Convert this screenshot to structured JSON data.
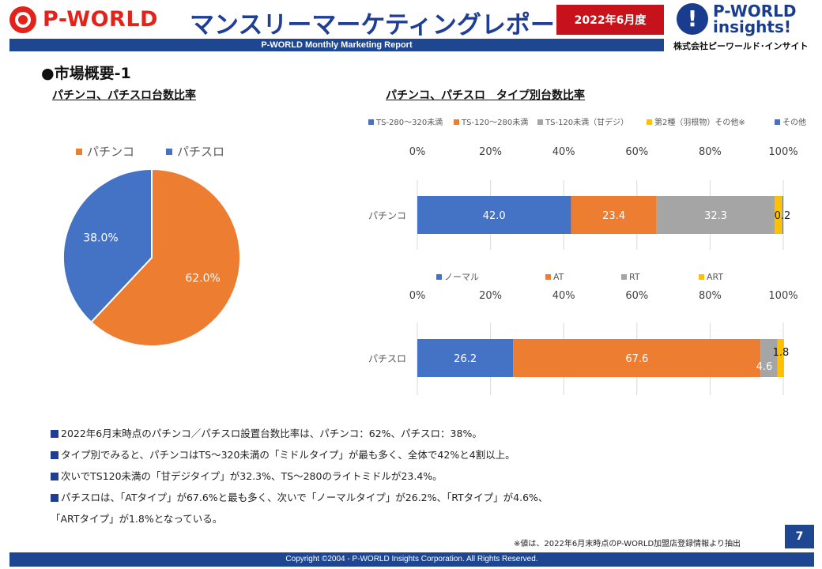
{
  "header": {
    "brand_left": "P-WORLD",
    "title": "マンスリーマーケティングレポート",
    "date_badge": "2022年6月度",
    "subtitle": "P-WORLD Monthly Marketing Report",
    "brand_right_line1": "P-WORLD",
    "brand_right_line2": "insights!",
    "brand_right_company": "株式会社ピーワールド･インサイト",
    "brand_right_mark": "!"
  },
  "section_heading": "●市場概要-1",
  "left_chart_heading": "パチンコ、パチスロ台数比率",
  "right_chart_heading": "パチンコ、パチスロ　タイプ別台数比率",
  "colors": {
    "blue": "#4472c4",
    "orange": "#ed7d31",
    "gray": "#a5a5a5",
    "yellow": "#ffc000",
    "navy": "#1f4690",
    "red": "#c8121b"
  },
  "chart_data": [
    {
      "type": "pie",
      "title": "",
      "legend_position": "top",
      "labels": [
        "パチンコ",
        "パチスロ"
      ],
      "values": [
        62.0,
        38.0
      ],
      "data_labels": [
        "62.0%",
        "38.0%"
      ],
      "colors": [
        "#ed7d31",
        "#4472c4"
      ]
    },
    {
      "type": "bar",
      "orientation": "horizontal",
      "stacked": "100%",
      "title": "",
      "legend_position": "top",
      "categories": [
        "パチンコ"
      ],
      "x_ticks": [
        "0%",
        "20%",
        "40%",
        "60%",
        "80%",
        "100%"
      ],
      "xlim": [
        0,
        100
      ],
      "grid": true,
      "series": [
        {
          "name": "TS-280～320未満",
          "values": [
            42.0
          ],
          "label": "42.0",
          "color": "#4472c4"
        },
        {
          "name": "TS-120～280未満",
          "values": [
            23.4
          ],
          "label": "23.4",
          "color": "#ed7d31"
        },
        {
          "name": "TS-120未満（甘デジ）",
          "values": [
            32.3
          ],
          "label": "32.3",
          "color": "#a5a5a5"
        },
        {
          "name": "第2種（羽根物）その他※",
          "values": [
            2.1
          ],
          "label": "",
          "color": "#ffc000"
        },
        {
          "name": "その他",
          "values": [
            0.2
          ],
          "label": "0.2",
          "color": "#4472c4"
        }
      ]
    },
    {
      "type": "bar",
      "orientation": "horizontal",
      "stacked": "100%",
      "title": "",
      "legend_position": "top",
      "categories": [
        "パチスロ"
      ],
      "x_ticks": [
        "0%",
        "20%",
        "40%",
        "60%",
        "80%",
        "100%"
      ],
      "xlim": [
        0,
        100
      ],
      "grid": true,
      "series": [
        {
          "name": "ノーマル",
          "values": [
            26.2
          ],
          "label": "26.2",
          "color": "#4472c4"
        },
        {
          "name": "AT",
          "values": [
            67.6
          ],
          "label": "67.6",
          "color": "#ed7d31"
        },
        {
          "name": "RT",
          "values": [
            4.6
          ],
          "label": "4.6",
          "color": "#a5a5a5"
        },
        {
          "name": "ART",
          "values": [
            1.8
          ],
          "label": "1.8",
          "color": "#ffc000"
        }
      ]
    }
  ],
  "bullets": [
    "2022年6月末時点のパチンコ／パチスロ設置台数比率は、パチンコ：62%、パチスロ：38%。",
    "タイプ別でみると、パチンコはTS～320未満の「ミドルタイプ」が最も多く、全体で42%と4割以上。",
    "次いでTS120未満の「甘デジタイプ」が32.3%、TS～280のライトミドルが23.4%。",
    "パチスロは、「ATタイプ」が67.6%と最も多く、次いで「ノーマルタイプ」が26.2%、「RTタイプ」が4.6%、",
    "「ARTタイプ」が1.8%となっている。"
  ],
  "bullet_marks": [
    true,
    true,
    true,
    true,
    false
  ],
  "footnote": "※値は、2022年6月末時点のP-WORLD加盟店登録情報より抽出",
  "page_number": "7",
  "copyright": "Copyright ©2004 -  P-WORLD Insights Corporation. All Rights Reserved."
}
